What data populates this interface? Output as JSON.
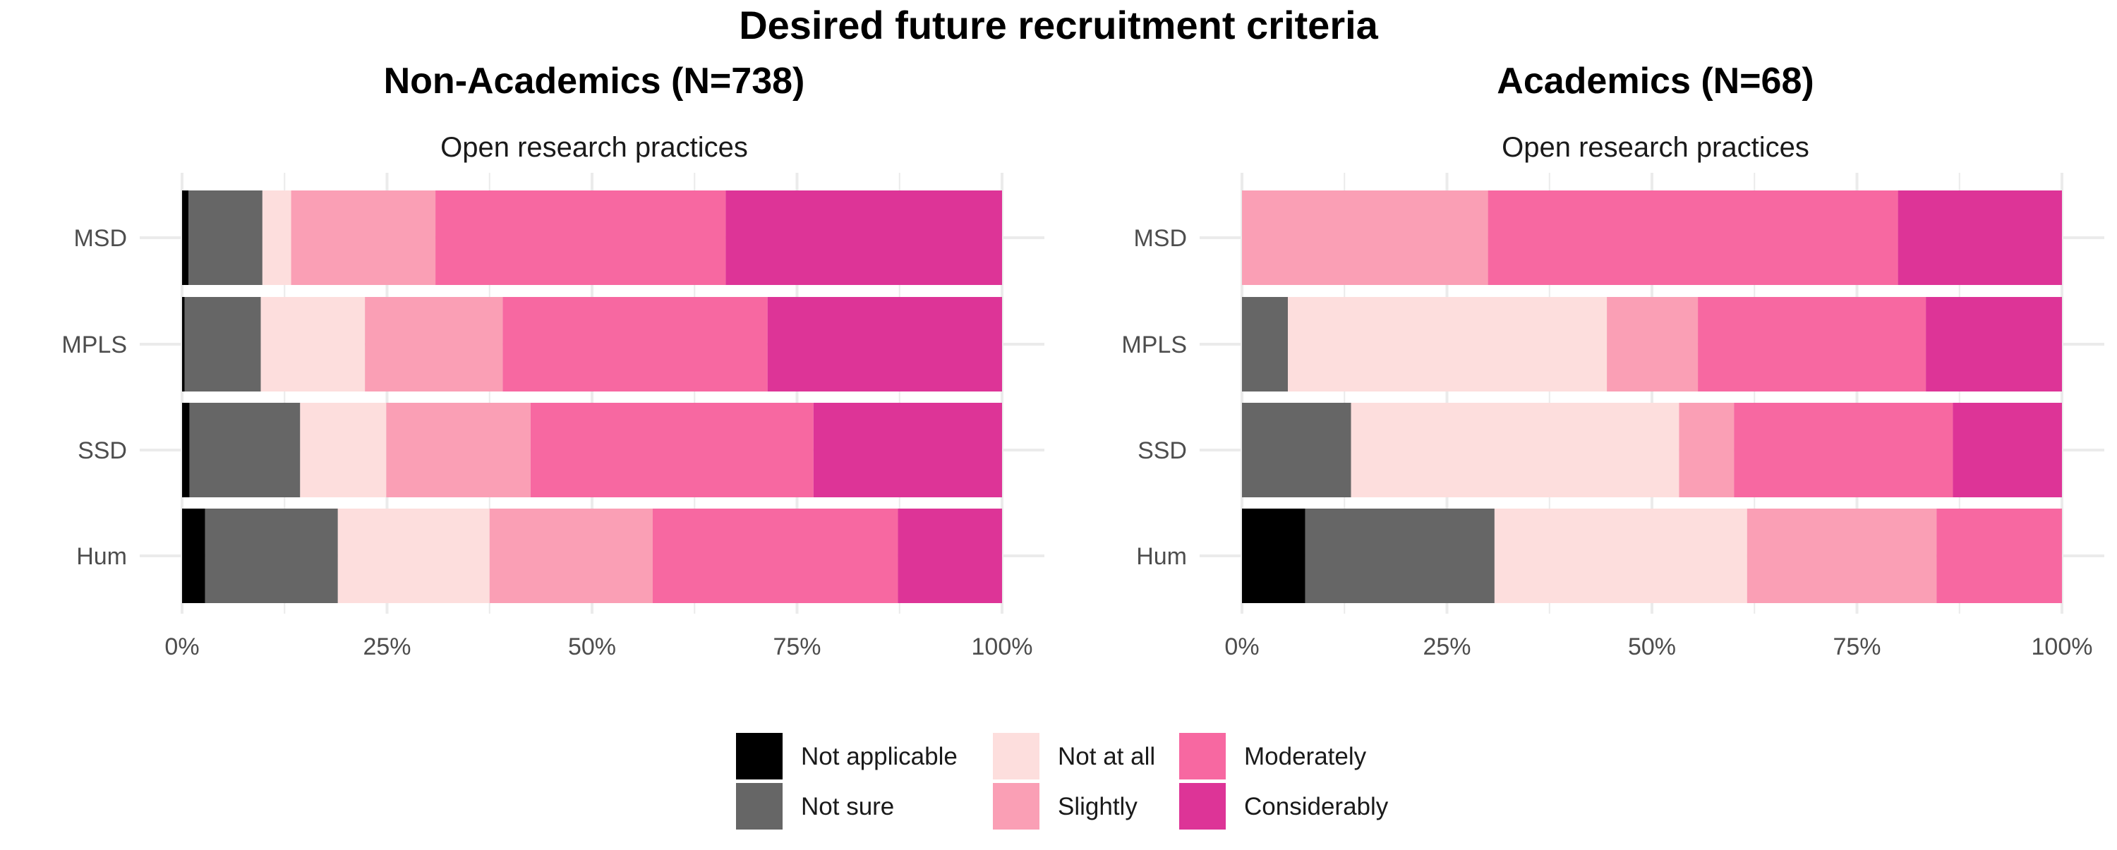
{
  "title": "Desired future recruitment criteria",
  "legend": [
    {
      "label": "Not applicable",
      "color": "#000000"
    },
    {
      "label": "Not sure",
      "color": "#666666"
    },
    {
      "label": "Not at all",
      "color": "#FDDEDD"
    },
    {
      "label": "Slightly",
      "color": "#FA9FB5"
    },
    {
      "label": "Moderately",
      "color": "#F768A1"
    },
    {
      "label": "Considerably",
      "color": "#DD3497"
    }
  ],
  "chart_data": [
    {
      "type": "bar",
      "orientation": "horizontal",
      "stacked": true,
      "title": "Non-Academics (N=738)",
      "subtitle": "Open research practices",
      "categories": [
        "MSD",
        "MPLS",
        "SSD",
        "Hum"
      ],
      "xlim": [
        0,
        100
      ],
      "xticks": [
        "0%",
        "25%",
        "50%",
        "75%",
        "100%"
      ],
      "series": [
        {
          "name": "Not applicable",
          "values": [
            0.8,
            0.3,
            0.9,
            2.8
          ]
        },
        {
          "name": "Not sure",
          "values": [
            9.0,
            9.3,
            13.5,
            16.2
          ]
        },
        {
          "name": "Not at all",
          "values": [
            3.5,
            12.7,
            10.5,
            18.5
          ]
        },
        {
          "name": "Slightly",
          "values": [
            17.6,
            16.8,
            17.6,
            19.9
          ]
        },
        {
          "name": "Moderately",
          "values": [
            35.4,
            32.3,
            34.5,
            29.9
          ]
        },
        {
          "name": "Considerably",
          "values": [
            33.7,
            28.6,
            23.0,
            12.7
          ]
        }
      ]
    },
    {
      "type": "bar",
      "orientation": "horizontal",
      "stacked": true,
      "title": "Academics (N=68)",
      "subtitle": "Open research practices",
      "categories": [
        "MSD",
        "MPLS",
        "SSD",
        "Hum"
      ],
      "xlim": [
        0,
        100
      ],
      "xticks": [
        "0%",
        "25%",
        "50%",
        "75%",
        "100%"
      ],
      "series": [
        {
          "name": "Not applicable",
          "values": [
            0,
            0,
            0,
            7.7
          ]
        },
        {
          "name": "Not sure",
          "values": [
            0,
            5.6,
            13.3,
            23.1
          ]
        },
        {
          "name": "Not at all",
          "values": [
            0,
            38.9,
            40.0,
            30.8
          ]
        },
        {
          "name": "Slightly",
          "values": [
            30.0,
            11.1,
            6.7,
            23.1
          ]
        },
        {
          "name": "Moderately",
          "values": [
            50.0,
            27.8,
            26.7,
            15.3
          ]
        },
        {
          "name": "Considerably",
          "values": [
            20.0,
            16.6,
            13.3,
            0
          ]
        }
      ]
    }
  ]
}
